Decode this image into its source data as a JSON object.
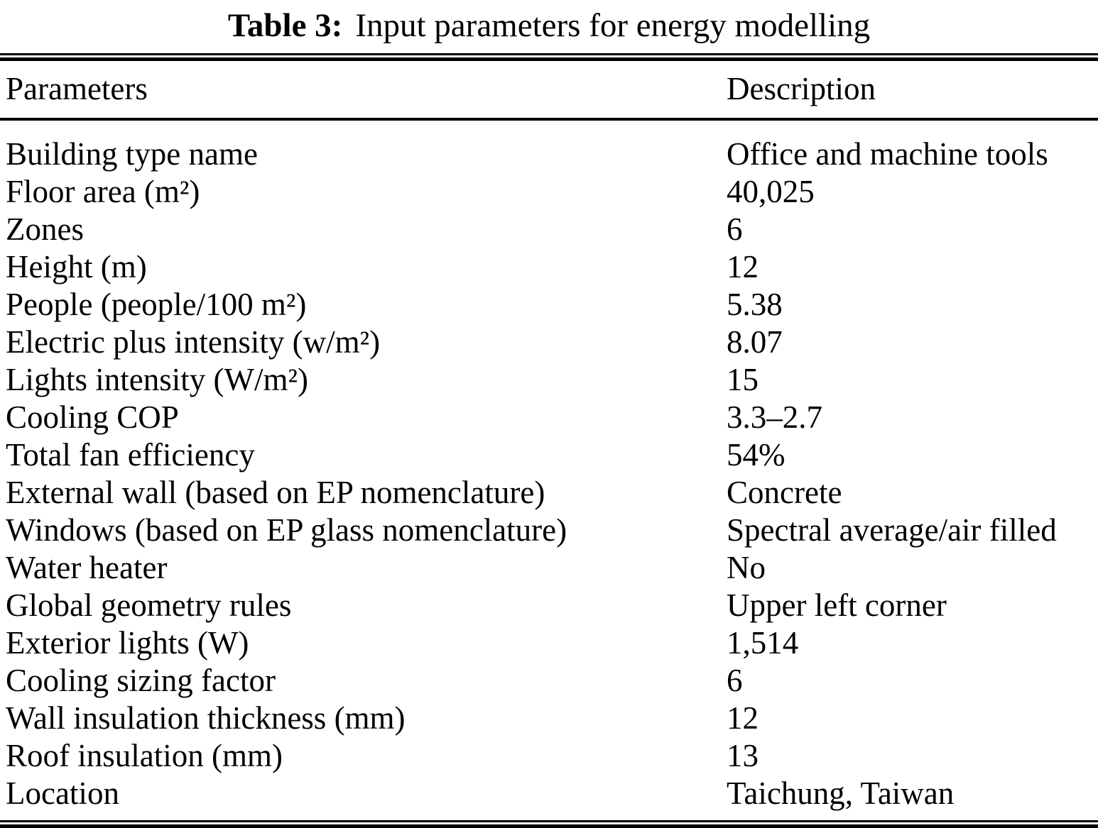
{
  "title": {
    "label": "Table 3:",
    "text": "Input parameters for energy modelling"
  },
  "table": {
    "headers": {
      "parameters": "Parameters",
      "description": "Description"
    },
    "rows": [
      {
        "parameter": "Building type name",
        "description": "Office and machine tools"
      },
      {
        "parameter": "Floor area (m²)",
        "description": "40,025"
      },
      {
        "parameter": "Zones",
        "description": "6"
      },
      {
        "parameter": "Height (m)",
        "description": "12"
      },
      {
        "parameter": "People (people/100 m²)",
        "description": "5.38"
      },
      {
        "parameter": "Electric plus intensity (w/m²)",
        "description": "8.07"
      },
      {
        "parameter": "Lights intensity (W/m²)",
        "description": "15"
      },
      {
        "parameter": "Cooling COP",
        "description": "3.3–2.7"
      },
      {
        "parameter": "Total fan efficiency",
        "description": "54%"
      },
      {
        "parameter": "External wall (based on EP nomenclature)",
        "description": "Concrete"
      },
      {
        "parameter": "Windows (based on EP glass nomenclature)",
        "description": "Spectral average/air filled"
      },
      {
        "parameter": "Water heater",
        "description": "No"
      },
      {
        "parameter": "Global geometry rules",
        "description": "Upper left corner"
      },
      {
        "parameter": "Exterior lights (W)",
        "description": "1,514"
      },
      {
        "parameter": "Cooling sizing factor",
        "description": "6"
      },
      {
        "parameter": "Wall insulation thickness (mm)",
        "description": "12"
      },
      {
        "parameter": "Roof insulation (mm)",
        "description": "13"
      },
      {
        "parameter": "Location",
        "description": "Taichung, Taiwan"
      }
    ]
  }
}
